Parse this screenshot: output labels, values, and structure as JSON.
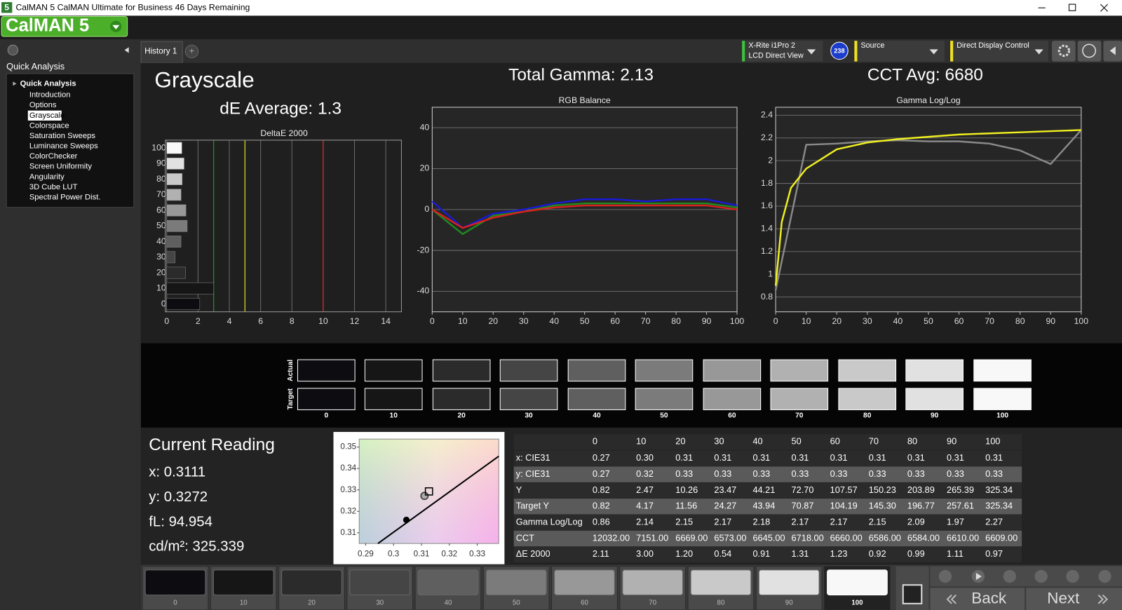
{
  "window": {
    "title": "CalMAN 5 CalMAN Ultimate for Business 46 Days Remaining",
    "icon": "5",
    "logo": "CalMAN 5"
  },
  "sidebar": {
    "heading": "Quick Analysis",
    "root": "Quick Analysis",
    "items": [
      "Introduction",
      "Options",
      "Grayscale",
      "Colorspace",
      "Saturation Sweeps",
      "Luminance Sweeps",
      "ColorChecker",
      "Screen Uniformity",
      "Angularity",
      "3D Cube LUT",
      "Spectral Power Dist."
    ],
    "selected": 2
  },
  "tabs": {
    "active": "History 1",
    "add": "+"
  },
  "toolbar": {
    "meter": "X-Rite i1Pro 2",
    "meter_mode": "LCD Direct View",
    "badge": "238",
    "source": "Source",
    "display": "Direct Display Control"
  },
  "headings": {
    "title": "Grayscale",
    "de_average": "dE Average: 1.3",
    "total_gamma": "Total Gamma: 2.13",
    "cct_avg": "CCT Avg: 6680"
  },
  "levels": [
    "0",
    "10",
    "20",
    "30",
    "40",
    "50",
    "60",
    "70",
    "80",
    "90",
    "100"
  ],
  "chart_data": [
    {
      "type": "hbar",
      "title": "DeltaE 2000",
      "categories": [
        "100",
        "90",
        "80",
        "70",
        "60",
        "50",
        "40",
        "30",
        "20",
        "10",
        "0"
      ],
      "values": [
        0.97,
        1.11,
        0.99,
        0.92,
        1.23,
        1.31,
        0.91,
        0.54,
        1.2,
        3.0,
        2.11
      ],
      "xlim": [
        0,
        15
      ],
      "xticks": [
        0,
        2,
        4,
        6,
        8,
        10,
        12,
        14
      ],
      "ref_lines": [
        {
          "value": 3,
          "color": "#1f9a1f"
        },
        {
          "value": 5,
          "color": "#e0e020"
        },
        {
          "value": 10,
          "color": "#e02828"
        }
      ]
    },
    {
      "type": "line",
      "title": "RGB Balance",
      "x": [
        0,
        10,
        20,
        30,
        40,
        50,
        60,
        70,
        80,
        90,
        100
      ],
      "series": [
        {
          "color": "#1a1ad8",
          "values": [
            4,
            -9,
            -2,
            0,
            3,
            5,
            5,
            4,
            5,
            5,
            2
          ]
        },
        {
          "color": "#1f8a1f",
          "values": [
            0,
            -12,
            -3,
            -1,
            2,
            3,
            3,
            3,
            3,
            3,
            1
          ]
        },
        {
          "color": "#d82020",
          "values": [
            0,
            -9,
            -4,
            -1,
            1,
            2,
            2,
            2,
            2,
            2,
            0
          ]
        }
      ],
      "xlim": [
        0,
        100
      ],
      "xticks": [
        0,
        10,
        20,
        30,
        40,
        50,
        60,
        70,
        80,
        90,
        100
      ],
      "ylim": [
        -50,
        50
      ],
      "yticks": [
        -40,
        -20,
        0,
        20,
        40
      ]
    },
    {
      "type": "line",
      "title": "Gamma Log/Log",
      "series": [
        {
          "color": "#8a8a8a",
          "x": [
            0,
            10,
            20,
            30,
            40,
            50,
            60,
            70,
            80,
            90,
            100
          ],
          "values": [
            0.86,
            2.14,
            2.15,
            2.17,
            2.18,
            2.17,
            2.17,
            2.15,
            2.09,
            1.97,
            2.27
          ]
        },
        {
          "color": "#f0f020",
          "x": [
            0,
            2,
            5,
            10,
            20,
            30,
            40,
            50,
            60,
            70,
            80,
            90,
            100
          ],
          "values": [
            0.9,
            1.46,
            1.76,
            1.93,
            2.1,
            2.16,
            2.19,
            2.21,
            2.23,
            2.24,
            2.25,
            2.26,
            2.27
          ]
        }
      ],
      "xlim": [
        0,
        100
      ],
      "xticks": [
        0,
        10,
        20,
        30,
        40,
        50,
        60,
        70,
        80,
        90,
        100
      ],
      "ylim": [
        0.67,
        2.47
      ],
      "yticks": [
        0.8,
        1,
        1.2,
        1.4,
        1.6,
        1.8,
        2,
        2.2,
        2.4
      ]
    },
    {
      "type": "scatter",
      "x": [
        0.3111,
        0.3127,
        0.3046
      ],
      "y": [
        0.3272,
        0.3293,
        0.316
      ],
      "markers": [
        "ring",
        "square",
        "dot"
      ],
      "locus": {
        "x": [
          0.2944,
          0.3377
        ],
        "y": [
          0.305,
          0.3457
        ]
      },
      "xlim": [
        0.2877,
        0.3377
      ],
      "xticks": [
        0.29,
        0.3,
        0.31,
        0.32,
        0.33
      ],
      "ylim": [
        0.305,
        0.3537
      ],
      "yticks": [
        0.31,
        0.32,
        0.33,
        0.34,
        0.35
      ]
    }
  ],
  "swatches": {
    "actual": "Actual",
    "target": "Target",
    "colors": [
      "#0c0c11",
      "#161616",
      "#2b2b2b",
      "#454545",
      "#5f5f5f",
      "#7b7b7b",
      "#989898",
      "#b1b1b1",
      "#c9c9c9",
      "#e1e1e1",
      "#f8f8f8"
    ]
  },
  "reading": {
    "heading": "Current Reading",
    "lines": [
      "x: 0.3111",
      "y: 0.3272",
      "fL: 94.954",
      "cd/m²: 325.339"
    ]
  },
  "table": {
    "rows": [
      {
        "label": "x: CIE31",
        "cells": [
          "0.27",
          "0.30",
          "0.31",
          "0.31",
          "0.31",
          "0.31",
          "0.31",
          "0.31",
          "0.31",
          "0.31",
          "0.31"
        ]
      },
      {
        "label": "y: CIE31",
        "cells": [
          "0.27",
          "0.32",
          "0.33",
          "0.33",
          "0.33",
          "0.33",
          "0.33",
          "0.33",
          "0.33",
          "0.33",
          "0.33"
        ]
      },
      {
        "label": "Y",
        "cells": [
          "0.82",
          "2.47",
          "10.26",
          "23.47",
          "44.21",
          "72.70",
          "107.57",
          "150.23",
          "203.89",
          "265.39",
          "325.34"
        ]
      },
      {
        "label": "Target Y",
        "cells": [
          "0.82",
          "4.17",
          "11.56",
          "24.27",
          "43.94",
          "70.87",
          "104.19",
          "145.30",
          "196.77",
          "257.61",
          "325.34"
        ]
      },
      {
        "label": "Gamma Log/Log",
        "cells": [
          "0.86",
          "2.14",
          "2.15",
          "2.17",
          "2.18",
          "2.17",
          "2.17",
          "2.15",
          "2.09",
          "1.97",
          "2.27"
        ]
      },
      {
        "label": "CCT",
        "cells": [
          "12032.00",
          "7151.00",
          "6669.00",
          "6573.00",
          "6645.00",
          "6718.00",
          "6660.00",
          "6586.00",
          "6584.00",
          "6610.00",
          "6609.00"
        ]
      },
      {
        "label": "ΔE 2000",
        "cells": [
          "2.11",
          "3.00",
          "1.20",
          "0.54",
          "0.91",
          "1.31",
          "1.23",
          "0.92",
          "0.99",
          "1.11",
          "0.97"
        ]
      }
    ]
  },
  "bottom_bar": {
    "selected": 10,
    "back": "Back",
    "next": "Next"
  }
}
